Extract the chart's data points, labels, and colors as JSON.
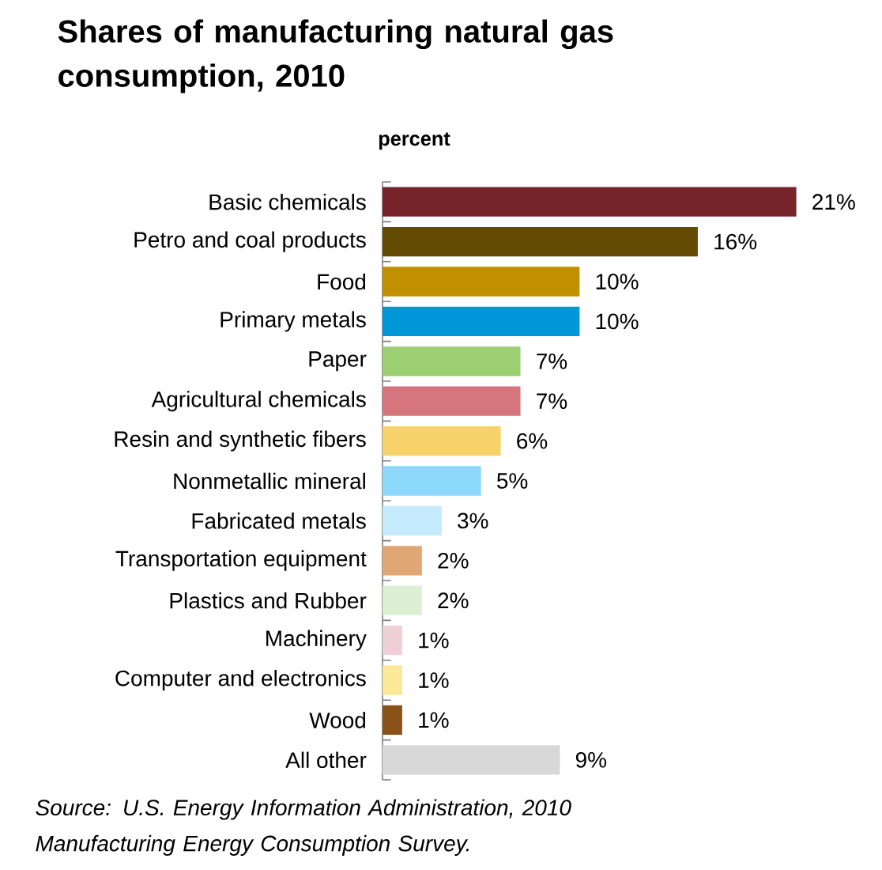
{
  "chart_data": {
    "type": "bar",
    "orientation": "horizontal",
    "title": "Shares of manufacturing natural gas consumption, 2010",
    "subtitle": "percent",
    "categories": [
      "Basic chemicals",
      "Petro and coal products",
      "Food",
      "Primary metals",
      "Paper",
      "Agricultural chemicals",
      "Resin and synthetic fibers",
      "Nonmetallic mineral",
      "Fabricated metals",
      "Transportation equipment",
      "Plastics and Rubber",
      "Machinery",
      "Computer and electronics",
      "Wood",
      "All other"
    ],
    "values": [
      21,
      16,
      10,
      10,
      7,
      7,
      6,
      5,
      3,
      2,
      2,
      1,
      1,
      1,
      9
    ],
    "value_labels": [
      "21%",
      "16%",
      "10%",
      "10%",
      "7%",
      "7%",
      "6%",
      "5%",
      "3%",
      "2%",
      "2%",
      "1%",
      "1%",
      "1%",
      "9%"
    ],
    "colors": [
      "#77242d",
      "#644c04",
      "#c09000",
      "#0097d8",
      "#9bcf72",
      "#d7757e",
      "#f7d26a",
      "#8cd9fb",
      "#c4eafc",
      "#e0a775",
      "#dcefd2",
      "#efd0d7",
      "#fde89a",
      "#8b531a",
      "#d8d8d8"
    ],
    "tick_labels": false,
    "annotations": [
      "Source: U.S. Energy Information Administration, 2010 Manufacturing Energy Consumption Survey."
    ]
  }
}
